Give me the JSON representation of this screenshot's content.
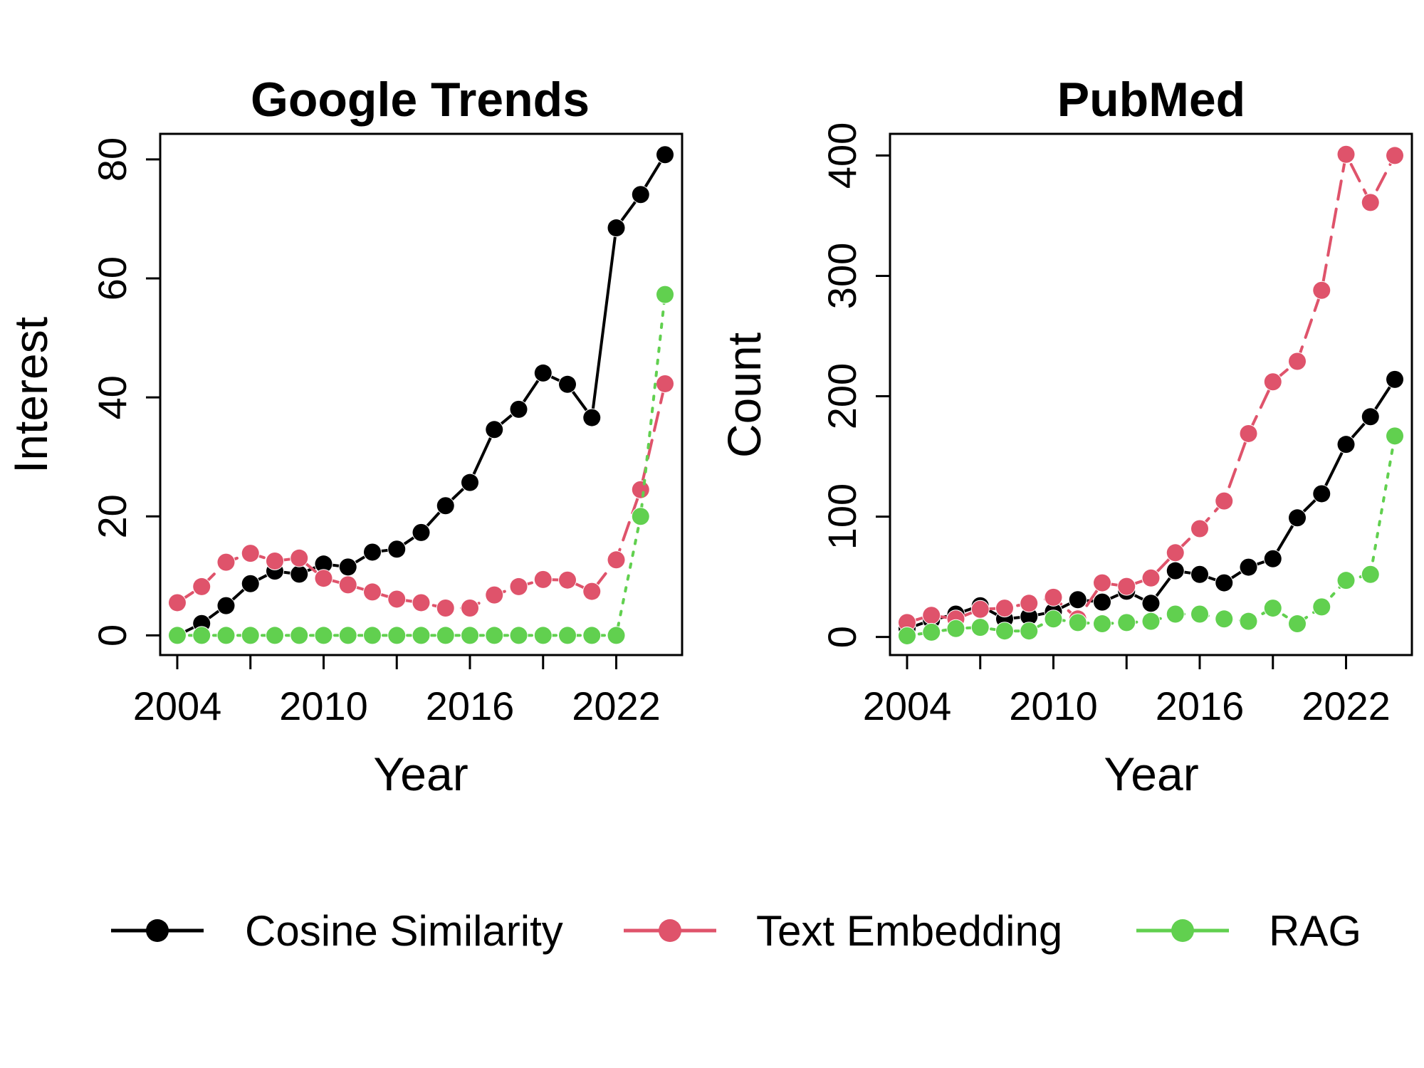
{
  "chart_data": [
    {
      "type": "line",
      "title": "Google Trends",
      "xlabel": "Year",
      "ylabel": "Interest",
      "xlim": [
        2003.3,
        2024.7
      ],
      "ylim": [
        -3.3,
        84.3
      ],
      "xticks": [
        2004,
        2010,
        2016,
        2022
      ],
      "xtick_labels": [
        "2004",
        "2010",
        "2016",
        "2022"
      ],
      "yticks": [
        0,
        20,
        40,
        60,
        80
      ],
      "ytick_labels": [
        "0",
        "20",
        "40",
        "60",
        "80"
      ],
      "x": [
        2004,
        2005,
        2006,
        2007,
        2008,
        2009,
        2010,
        2011,
        2012,
        2013,
        2014,
        2015,
        2016,
        2017,
        2018,
        2019,
        2020,
        2021,
        2022,
        2023,
        2024
      ],
      "series": [
        {
          "name": "Cosine Similarity",
          "color": "#000000",
          "dash": "solid",
          "values": [
            0,
            2,
            5,
            8.7,
            10.8,
            10.3,
            12,
            11.5,
            14,
            14.5,
            17.3,
            21.8,
            25.7,
            34.6,
            38,
            44.1,
            42.2,
            36.6,
            68.5,
            74.1,
            80.8
          ]
        },
        {
          "name": "Text Embedding",
          "color": "#DF536B",
          "dash": "dashed",
          "values": [
            5.5,
            8.2,
            12.3,
            13.8,
            12.5,
            13,
            9.6,
            8.5,
            7.3,
            6.1,
            5.5,
            4.6,
            4.6,
            6.8,
            8.2,
            9.4,
            9.3,
            7.4,
            12.7,
            24.5,
            42.3
          ]
        },
        {
          "name": "RAG",
          "color": "#61D04F",
          "dash": "dotted",
          "values": [
            0,
            0,
            0,
            0,
            0,
            0,
            0,
            0,
            0,
            0,
            0,
            0,
            0,
            0,
            0,
            0,
            0,
            0,
            0,
            20,
            57.3
          ]
        }
      ]
    },
    {
      "type": "line",
      "title": "PubMed",
      "xlabel": "Year",
      "ylabel": "Count",
      "xlim": [
        2003.3,
        2024.7
      ],
      "ylim": [
        -15,
        418
      ],
      "xticks": [
        2004,
        2010,
        2016,
        2022
      ],
      "xtick_labels": [
        "2004",
        "2010",
        "2016",
        "2022"
      ],
      "yticks": [
        0,
        100,
        200,
        300,
        400
      ],
      "ytick_labels": [
        "0",
        "100",
        "200",
        "300",
        "400"
      ],
      "x": [
        2004,
        2005,
        2006,
        2007,
        2008,
        2009,
        2010,
        2011,
        2012,
        2013,
        2014,
        2015,
        2016,
        2017,
        2018,
        2019,
        2020,
        2021,
        2022,
        2023,
        2024
      ],
      "series": [
        {
          "name": "Cosine Similarity",
          "color": "#000000",
          "dash": "solid",
          "values": [
            7,
            14,
            19,
            26,
            15,
            17,
            21,
            31,
            29,
            38,
            28,
            55,
            52,
            45,
            58,
            65,
            99,
            119,
            160,
            183,
            214
          ]
        },
        {
          "name": "Text Embedding",
          "color": "#DF536B",
          "dash": "dashed",
          "values": [
            12,
            18,
            15,
            23,
            24,
            28,
            33,
            15,
            45,
            42,
            49,
            70,
            90,
            113,
            169,
            212,
            229,
            288,
            401,
            361,
            400
          ]
        },
        {
          "name": "RAG",
          "color": "#61D04F",
          "dash": "dotted",
          "values": [
            1,
            4,
            7,
            8,
            5,
            5,
            15,
            12,
            11,
            12,
            13,
            19,
            19,
            15,
            13,
            24,
            11,
            25,
            47,
            52,
            167
          ]
        }
      ]
    }
  ],
  "legend": {
    "position": "bottom",
    "entries": [
      {
        "label": "Cosine Similarity",
        "color": "#000000"
      },
      {
        "label": "Text Embedding",
        "color": "#DF536B"
      },
      {
        "label": "RAG",
        "color": "#61D04F"
      }
    ]
  }
}
